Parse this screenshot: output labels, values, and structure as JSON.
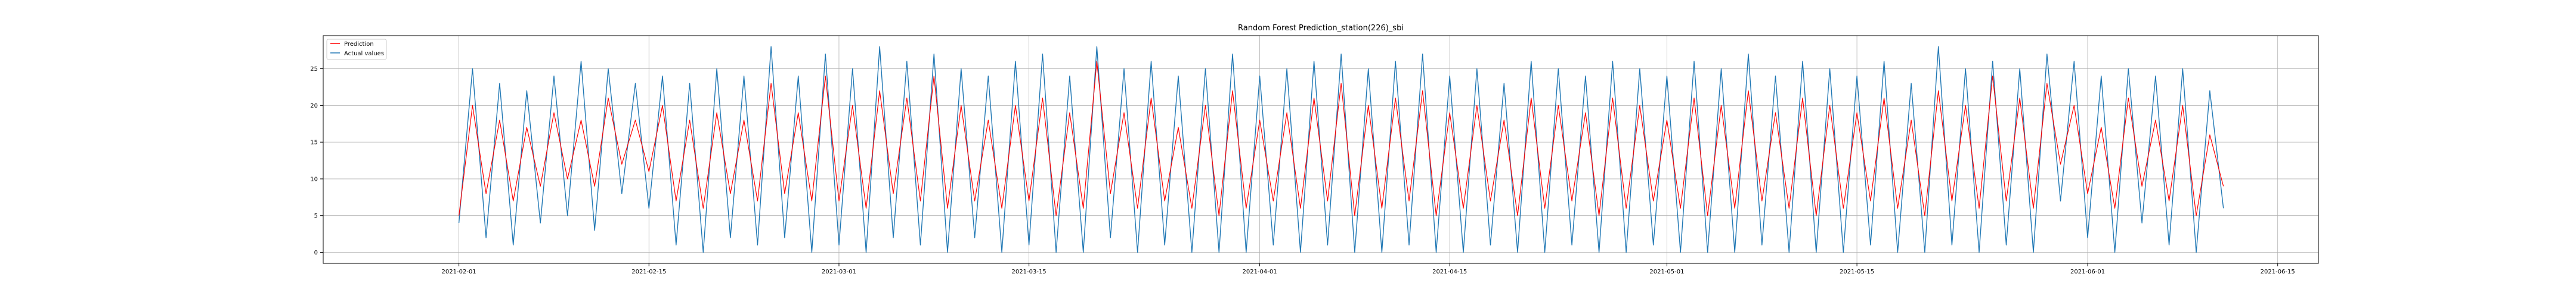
{
  "chart_data": {
    "type": "line",
    "title": "Random Forest Prediction_station(226)_sbi",
    "xlabel": "",
    "ylabel": "",
    "x_range": [
      "2021-01-22",
      "2021-06-18"
    ],
    "x_ticks": [
      "2021-02-01",
      "2021-02-15",
      "2021-03-01",
      "2021-03-15",
      "2021-04-01",
      "2021-04-15",
      "2021-05-01",
      "2021-05-15",
      "2021-06-01",
      "2021-06-15"
    ],
    "ylim": [
      -1.5,
      29.5
    ],
    "y_ticks": [
      0,
      5,
      10,
      15,
      20,
      25
    ],
    "grid": true,
    "legend": {
      "position": "top-left",
      "entries": [
        "Prediction",
        "Actual values"
      ]
    },
    "colors": {
      "Prediction": "#ff0000",
      "Actual values": "#1f77b4"
    },
    "series": [
      {
        "name": "Prediction",
        "x": [
          "2021-02-01",
          "2021-02-02",
          "2021-02-03",
          "2021-02-04",
          "2021-02-05",
          "2021-02-06",
          "2021-02-07",
          "2021-02-08",
          "2021-02-09",
          "2021-02-10",
          "2021-02-11",
          "2021-02-12",
          "2021-02-13",
          "2021-02-14",
          "2021-02-15",
          "2021-02-16",
          "2021-02-17",
          "2021-02-18",
          "2021-02-19",
          "2021-02-20",
          "2021-02-21",
          "2021-02-22",
          "2021-02-23",
          "2021-02-24",
          "2021-02-25",
          "2021-02-26",
          "2021-02-27",
          "2021-02-28",
          "2021-03-01",
          "2021-03-02",
          "2021-03-03",
          "2021-03-04",
          "2021-03-05",
          "2021-03-06",
          "2021-03-07",
          "2021-03-08",
          "2021-03-09",
          "2021-03-10",
          "2021-03-11",
          "2021-03-12",
          "2021-03-13",
          "2021-03-14",
          "2021-03-15",
          "2021-03-16",
          "2021-03-17",
          "2021-03-18",
          "2021-03-19",
          "2021-03-20",
          "2021-03-21",
          "2021-03-22",
          "2021-03-23",
          "2021-03-24",
          "2021-03-25",
          "2021-03-26",
          "2021-03-27",
          "2021-03-28",
          "2021-03-29",
          "2021-03-30",
          "2021-03-31",
          "2021-04-01",
          "2021-04-02",
          "2021-04-03",
          "2021-04-04",
          "2021-04-05",
          "2021-04-06",
          "2021-04-07",
          "2021-04-08",
          "2021-04-09",
          "2021-04-10",
          "2021-04-11",
          "2021-04-12",
          "2021-04-13",
          "2021-04-14",
          "2021-04-15",
          "2021-04-16",
          "2021-04-17",
          "2021-04-18",
          "2021-04-19",
          "2021-04-20",
          "2021-04-21",
          "2021-04-22",
          "2021-04-23",
          "2021-04-24",
          "2021-04-25",
          "2021-04-26",
          "2021-04-27",
          "2021-04-28",
          "2021-04-29",
          "2021-04-30",
          "2021-05-01",
          "2021-05-02",
          "2021-05-03",
          "2021-05-04",
          "2021-05-05",
          "2021-05-06",
          "2021-05-07",
          "2021-05-08",
          "2021-05-09",
          "2021-05-10",
          "2021-05-11",
          "2021-05-12",
          "2021-05-13",
          "2021-05-14",
          "2021-05-15",
          "2021-05-16",
          "2021-05-17",
          "2021-05-18",
          "2021-05-19",
          "2021-05-20",
          "2021-05-21",
          "2021-05-22",
          "2021-05-23",
          "2021-05-24",
          "2021-05-25",
          "2021-05-26",
          "2021-05-27",
          "2021-05-28",
          "2021-05-29",
          "2021-05-30",
          "2021-05-31",
          "2021-06-01",
          "2021-06-02",
          "2021-06-03",
          "2021-06-04",
          "2021-06-05",
          "2021-06-06",
          "2021-06-07",
          "2021-06-08",
          "2021-06-09",
          "2021-06-10",
          "2021-06-11"
        ],
        "values": [
          5,
          20,
          8,
          18,
          7,
          17,
          9,
          19,
          10,
          18,
          9,
          21,
          12,
          18,
          11,
          20,
          7,
          18,
          6,
          19,
          8,
          18,
          7,
          23,
          8,
          19,
          7,
          24,
          7,
          20,
          6,
          22,
          8,
          21,
          7,
          24,
          6,
          20,
          7,
          18,
          6,
          20,
          7,
          21,
          5,
          19,
          6,
          26,
          8,
          19,
          6,
          21,
          7,
          17,
          6,
          20,
          5,
          22,
          6,
          18,
          7,
          19,
          6,
          21,
          7,
          23,
          5,
          20,
          6,
          21,
          7,
          22,
          5,
          19,
          6,
          20,
          7,
          18,
          5,
          21,
          6,
          20,
          7,
          19,
          5,
          21,
          6,
          20,
          7,
          18,
          6,
          21,
          5,
          20,
          6,
          22,
          7,
          19,
          6,
          21,
          5,
          20,
          6,
          19,
          7,
          21,
          6,
          18,
          5,
          22,
          7,
          20,
          6,
          24,
          7,
          21,
          6,
          23,
          12,
          20,
          8,
          17,
          6,
          21,
          9,
          18,
          7,
          20,
          5,
          16,
          9
        ]
      },
      {
        "name": "Actual values",
        "x": [
          "2021-02-01",
          "2021-02-02",
          "2021-02-03",
          "2021-02-04",
          "2021-02-05",
          "2021-02-06",
          "2021-02-07",
          "2021-02-08",
          "2021-02-09",
          "2021-02-10",
          "2021-02-11",
          "2021-02-12",
          "2021-02-13",
          "2021-02-14",
          "2021-02-15",
          "2021-02-16",
          "2021-02-17",
          "2021-02-18",
          "2021-02-19",
          "2021-02-20",
          "2021-02-21",
          "2021-02-22",
          "2021-02-23",
          "2021-02-24",
          "2021-02-25",
          "2021-02-26",
          "2021-02-27",
          "2021-02-28",
          "2021-03-01",
          "2021-03-02",
          "2021-03-03",
          "2021-03-04",
          "2021-03-05",
          "2021-03-06",
          "2021-03-07",
          "2021-03-08",
          "2021-03-09",
          "2021-03-10",
          "2021-03-11",
          "2021-03-12",
          "2021-03-13",
          "2021-03-14",
          "2021-03-15",
          "2021-03-16",
          "2021-03-17",
          "2021-03-18",
          "2021-03-19",
          "2021-03-20",
          "2021-03-21",
          "2021-03-22",
          "2021-03-23",
          "2021-03-24",
          "2021-03-25",
          "2021-03-26",
          "2021-03-27",
          "2021-03-28",
          "2021-03-29",
          "2021-03-30",
          "2021-03-31",
          "2021-04-01",
          "2021-04-02",
          "2021-04-03",
          "2021-04-04",
          "2021-04-05",
          "2021-04-06",
          "2021-04-07",
          "2021-04-08",
          "2021-04-09",
          "2021-04-10",
          "2021-04-11",
          "2021-04-12",
          "2021-04-13",
          "2021-04-14",
          "2021-04-15",
          "2021-04-16",
          "2021-04-17",
          "2021-04-18",
          "2021-04-19",
          "2021-04-20",
          "2021-04-21",
          "2021-04-22",
          "2021-04-23",
          "2021-04-24",
          "2021-04-25",
          "2021-04-26",
          "2021-04-27",
          "2021-04-28",
          "2021-04-29",
          "2021-04-30",
          "2021-05-01",
          "2021-05-02",
          "2021-05-03",
          "2021-05-04",
          "2021-05-05",
          "2021-05-06",
          "2021-05-07",
          "2021-05-08",
          "2021-05-09",
          "2021-05-10",
          "2021-05-11",
          "2021-05-12",
          "2021-05-13",
          "2021-05-14",
          "2021-05-15",
          "2021-05-16",
          "2021-05-17",
          "2021-05-18",
          "2021-05-19",
          "2021-05-20",
          "2021-05-21",
          "2021-05-22",
          "2021-05-23",
          "2021-05-24",
          "2021-05-25",
          "2021-05-26",
          "2021-05-27",
          "2021-05-28",
          "2021-05-29",
          "2021-05-30",
          "2021-05-31",
          "2021-06-01",
          "2021-06-02",
          "2021-06-03",
          "2021-06-04",
          "2021-06-05",
          "2021-06-06",
          "2021-06-07",
          "2021-06-08",
          "2021-06-09",
          "2021-06-10",
          "2021-06-11"
        ],
        "values": [
          4,
          25,
          2,
          23,
          1,
          22,
          4,
          24,
          5,
          26,
          3,
          25,
          8,
          23,
          6,
          24,
          1,
          23,
          0,
          25,
          2,
          24,
          1,
          28,
          2,
          24,
          0,
          27,
          1,
          25,
          0,
          28,
          2,
          26,
          1,
          27,
          0,
          25,
          2,
          24,
          0,
          26,
          1,
          27,
          0,
          24,
          0,
          28,
          2,
          25,
          0,
          26,
          1,
          24,
          0,
          25,
          0,
          27,
          0,
          24,
          1,
          25,
          0,
          26,
          1,
          27,
          0,
          25,
          0,
          26,
          1,
          27,
          0,
          24,
          0,
          25,
          1,
          23,
          0,
          26,
          0,
          25,
          1,
          24,
          0,
          26,
          0,
          25,
          1,
          24,
          0,
          26,
          0,
          25,
          0,
          27,
          1,
          24,
          0,
          26,
          0,
          25,
          0,
          24,
          1,
          26,
          0,
          23,
          0,
          28,
          1,
          25,
          0,
          26,
          1,
          25,
          0,
          27,
          7,
          26,
          2,
          24,
          0,
          25,
          4,
          24,
          1,
          25,
          0,
          22,
          6
        ]
      }
    ]
  }
}
